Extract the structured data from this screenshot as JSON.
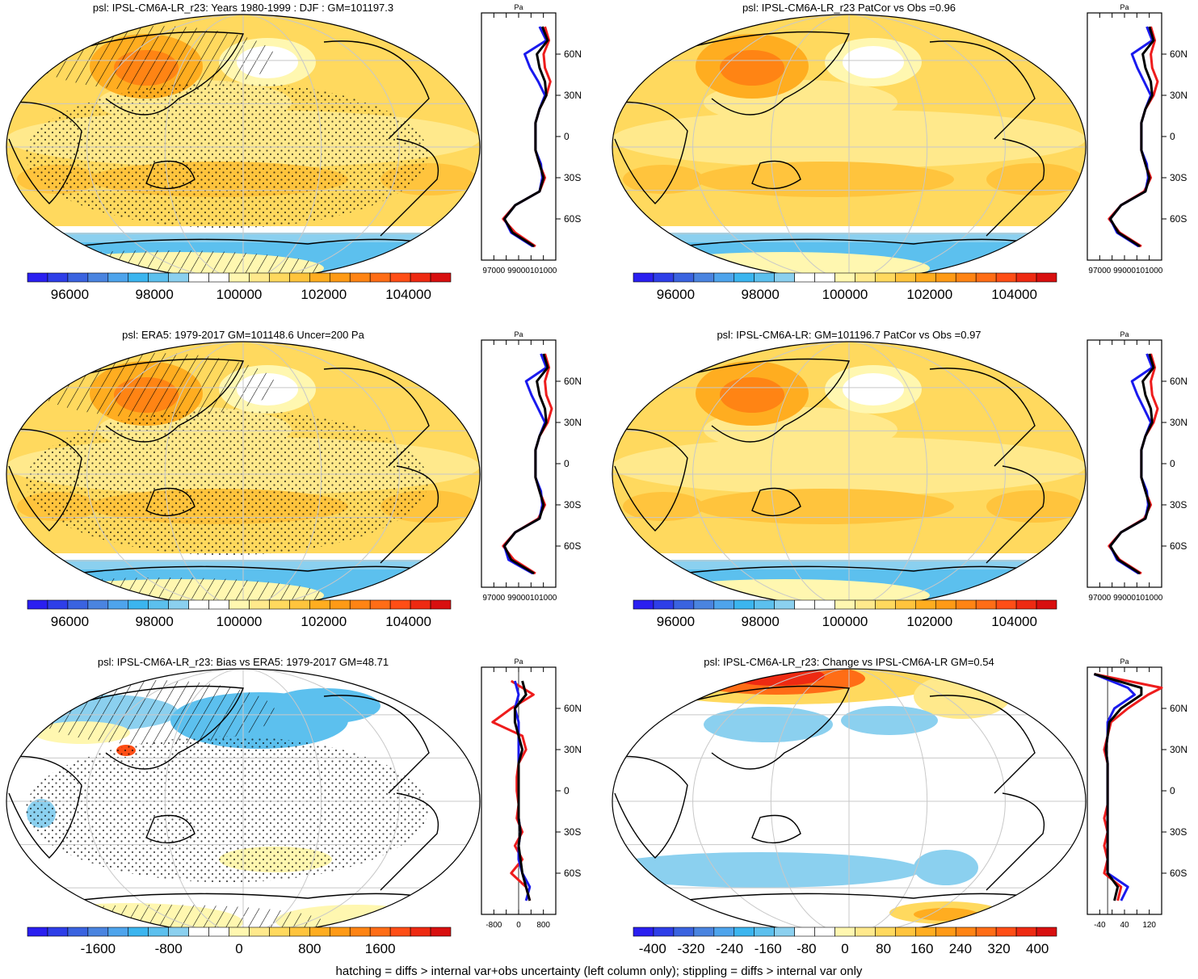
{
  "footer_note": "hatching = diffs > internal var+obs uncertainty (left column only); stippling = diffs > internal var only",
  "colors": {
    "cbar_abs": [
      "#2a1ff0",
      "#2e3ee8",
      "#3a63e0",
      "#4a84e0",
      "#4ea4ec",
      "#3bb5ef",
      "#5cc0ee",
      "#8bd0ef",
      "#ffffff",
      "#ffffff",
      "#fff7b0",
      "#ffe98c",
      "#ffd95e",
      "#ffc43d",
      "#ffad20",
      "#ff9a16",
      "#ff8414",
      "#ff6d16",
      "#ff4e16",
      "#ee2a12",
      "#d80f0f"
    ],
    "cbar_diff": [
      "#2a1ff0",
      "#2e3ee8",
      "#3a63e0",
      "#4a84e0",
      "#4ea4ec",
      "#3bb5ef",
      "#5cc0ee",
      "#8bd0ef",
      "#ffffff",
      "#ffffff",
      "#fff7b0",
      "#ffe98c",
      "#ffd95e",
      "#ffc43d",
      "#ffad20",
      "#ff9a16",
      "#ff8414",
      "#ff6d16",
      "#ff4e16",
      "#ee2a12",
      "#d80f0f"
    ],
    "model_line": "#ee1c1c",
    "obs_line": "#1a1aee",
    "ens_line": "#000000"
  },
  "lat_ticks": [
    "60N",
    "30N",
    "0",
    "30S",
    "60S"
  ],
  "panels": [
    {
      "title": "psl: IPSL-CM6A-LR_r23: Years 1980-1999 : DJF : GM=101197.3",
      "colorbar_ticks": [
        "96000",
        "98000",
        "100000",
        "102000",
        "104000"
      ],
      "profile_xticks": [
        "97000",
        "99000",
        "101000"
      ],
      "profile_unit": "Pa"
    },
    {
      "title": "psl: IPSL-CM6A-LR_r23 PatCor vs Obs =0.96",
      "colorbar_ticks": [
        "96000",
        "98000",
        "100000",
        "102000",
        "104000"
      ],
      "profile_xticks": [
        "97000",
        "99000",
        "101000"
      ],
      "profile_unit": "Pa"
    },
    {
      "title": "psl: ERA5: 1979-2017 GM=101148.6 Uncer=200 Pa",
      "colorbar_ticks": [
        "96000",
        "98000",
        "100000",
        "102000",
        "104000"
      ],
      "profile_xticks": [
        "97000",
        "99000",
        "101000"
      ],
      "profile_unit": "Pa"
    },
    {
      "title": "psl: IPSL-CM6A-LR: GM=101196.7 PatCor vs Obs =0.97",
      "colorbar_ticks": [
        "96000",
        "98000",
        "100000",
        "102000",
        "104000"
      ],
      "profile_xticks": [
        "97000",
        "99000",
        "101000"
      ],
      "profile_unit": "Pa"
    },
    {
      "title": "psl: IPSL-CM6A-LR_r23: Bias vs ERA5: 1979-2017 GM=48.71",
      "colorbar_ticks": [
        "-1600",
        "-800",
        "0",
        "800",
        "1600"
      ],
      "profile_xticks": [
        "-800",
        "0",
        "800"
      ],
      "profile_unit": "Pa"
    },
    {
      "title": "psl: IPSL-CM6A-LR_r23: Change vs IPSL-CM6A-LR GM=0.54",
      "colorbar_ticks": [
        "-400",
        "-320",
        "-240",
        "-160",
        "-80",
        "0",
        "80",
        "160",
        "240",
        "320",
        "400"
      ],
      "profile_xticks": [
        "-40",
        "40",
        "120"
      ],
      "profile_unit": "Pa"
    }
  ],
  "chart_data": [
    {
      "type": "heatmap",
      "title": "psl: IPSL-CM6A-LR_r23: Years 1980-1999 : DJF : GM=101197.3",
      "variable": "psl",
      "season": "DJF",
      "global_mean": 101197.3,
      "colorbar": {
        "min": 95000,
        "max": 105000,
        "ticks": [
          96000,
          98000,
          100000,
          102000,
          104000
        ]
      },
      "zonal_profile": {
        "lat": [
          80,
          70,
          60,
          50,
          40,
          30,
          20,
          10,
          0,
          -10,
          -20,
          -30,
          -40,
          -50,
          -60,
          -70,
          -80
        ],
        "series": [
          {
            "name": "model",
            "values": [
              101700,
              102000,
              101600,
              101700,
              102100,
              101800,
              101300,
              101000,
              101000,
              101000,
              101300,
              101700,
              101300,
              99500,
              98600,
              99500,
              101000
            ]
          },
          {
            "name": "obs",
            "values": [
              101300,
              101800,
              100200,
              100600,
              101200,
              101700,
              101300,
              101000,
              101000,
              101000,
              101400,
              101500,
              101300,
              99500,
              98700,
              99200,
              100800
            ]
          },
          {
            "name": "ensemble",
            "values": [
              101500,
              101900,
              101100,
              101300,
              101700,
              101800,
              101300,
              101000,
              101000,
              101000,
              101300,
              101600,
              101300,
              99500,
              98700,
              99300,
              100900
            ]
          }
        ],
        "xlim": [
          97000,
          102500
        ]
      }
    },
    {
      "type": "heatmap",
      "title": "psl: IPSL-CM6A-LR_r23 PatCor vs Obs =0.96",
      "variable": "psl",
      "pattern_correlation": 0.96,
      "colorbar": {
        "min": 95000,
        "max": 105000,
        "ticks": [
          96000,
          98000,
          100000,
          102000,
          104000
        ]
      },
      "zonal_profile": {
        "lat": [
          80,
          70,
          60,
          50,
          40,
          30,
          20,
          10,
          0,
          -10,
          -20,
          -30,
          -40,
          -50,
          -60,
          -70,
          -80
        ],
        "series": [
          {
            "name": "model",
            "values": [
              101700,
              102000,
              101700,
              101800,
              102200,
              101900,
              101300,
              101000,
              101000,
              101000,
              101300,
              101700,
              101200,
              99500,
              98600,
              99400,
              101000
            ]
          },
          {
            "name": "obs",
            "values": [
              101400,
              101800,
              100300,
              100700,
              101200,
              101700,
              101300,
              101000,
              101000,
              101000,
              101400,
              101500,
              101300,
              99500,
              98700,
              99200,
              100800
            ]
          },
          {
            "name": "ensemble",
            "values": [
              101600,
              101900,
              101100,
              101300,
              101700,
              101800,
              101300,
              101000,
              101000,
              101000,
              101300,
              101600,
              101300,
              99500,
              98700,
              99300,
              100900
            ]
          }
        ],
        "xlim": [
          97000,
          102500
        ]
      }
    },
    {
      "type": "heatmap",
      "title": "psl: ERA5: 1979-2017 GM=101148.6 Uncer=200 Pa",
      "variable": "psl",
      "global_mean": 101148.6,
      "uncertainty_pa": 200,
      "colorbar": {
        "min": 95000,
        "max": 105000,
        "ticks": [
          96000,
          98000,
          100000,
          102000,
          104000
        ]
      },
      "zonal_profile": {
        "lat": [
          80,
          70,
          60,
          50,
          40,
          30,
          20,
          10,
          0,
          -10,
          -20,
          -30,
          -40,
          -50,
          -60,
          -70,
          -80
        ],
        "series": [
          {
            "name": "model",
            "values": [
              101700,
              102000,
              101700,
              101800,
              102200,
              101900,
              101300,
              101000,
              101000,
              101000,
              101300,
              101700,
              101200,
              99500,
              98600,
              99400,
              101000
            ]
          },
          {
            "name": "obs",
            "values": [
              101400,
              101800,
              100300,
              100700,
              101200,
              101700,
              101300,
              101000,
              101000,
              101000,
              101400,
              101500,
              101300,
              99500,
              98700,
              99000,
              100800
            ]
          },
          {
            "name": "ensemble",
            "values": [
              101600,
              101900,
              101100,
              101300,
              101700,
              101800,
              101300,
              101000,
              101000,
              101000,
              101300,
              101600,
              101300,
              99500,
              98700,
              99200,
              100900
            ]
          }
        ],
        "xlim": [
          97000,
          102500
        ]
      }
    },
    {
      "type": "heatmap",
      "title": "psl: IPSL-CM6A-LR: GM=101196.7 PatCor vs Obs =0.97",
      "variable": "psl",
      "global_mean": 101196.7,
      "pattern_correlation": 0.97,
      "colorbar": {
        "min": 95000,
        "max": 105000,
        "ticks": [
          96000,
          98000,
          100000,
          102000,
          104000
        ]
      },
      "zonal_profile": {
        "lat": [
          80,
          70,
          60,
          50,
          40,
          30,
          20,
          10,
          0,
          -10,
          -20,
          -30,
          -40,
          -50,
          -60,
          -70,
          -80
        ],
        "series": [
          {
            "name": "model",
            "values": [
              101700,
              102000,
              101700,
              101800,
              102200,
              101900,
              101300,
              101000,
              101000,
              101000,
              101300,
              101700,
              101200,
              99500,
              98600,
              99400,
              101000
            ]
          },
          {
            "name": "obs",
            "values": [
              101400,
              101800,
              100300,
              100700,
              101200,
              101700,
              101300,
              101000,
              101000,
              101000,
              101400,
              101500,
              101300,
              99500,
              98700,
              99200,
              100800
            ]
          },
          {
            "name": "ensemble",
            "values": [
              101600,
              101900,
              101100,
              101300,
              101700,
              101800,
              101300,
              101000,
              101000,
              101000,
              101300,
              101600,
              101300,
              99500,
              98700,
              99300,
              100900
            ]
          }
        ],
        "xlim": [
          97000,
          102500
        ]
      }
    },
    {
      "type": "heatmap",
      "title": "psl: IPSL-CM6A-LR_r23: Bias vs ERA5: 1979-2017 GM=48.71",
      "variable": "psl",
      "global_mean": 48.71,
      "colorbar": {
        "min": -2400,
        "max": 2400,
        "ticks": [
          -1600,
          -800,
          0,
          800,
          1600
        ]
      },
      "zonal_profile": {
        "lat": [
          80,
          70,
          60,
          50,
          40,
          30,
          20,
          10,
          0,
          -10,
          -20,
          -30,
          -40,
          -50,
          -60,
          -70,
          -80
        ],
        "series": [
          {
            "name": "model",
            "values": [
              -200,
              400,
              -200,
              -700,
              100,
              200,
              0,
              -50,
              -50,
              0,
              -50,
              100,
              -100,
              100,
              -200,
              200,
              300
            ]
          },
          {
            "name": "obs",
            "values": [
              -100,
              0,
              -100,
              0,
              0,
              0,
              0,
              0,
              0,
              0,
              0,
              50,
              0,
              0,
              100,
              300,
              200
            ]
          },
          {
            "name": "ensemble",
            "values": [
              100,
              200,
              -100,
              -100,
              0,
              100,
              0,
              0,
              0,
              0,
              0,
              50,
              0,
              50,
              100,
              200,
              300
            ]
          }
        ],
        "xlim": [
          -1000,
          1000
        ]
      }
    },
    {
      "type": "heatmap",
      "title": "psl: IPSL-CM6A-LR_r23: Change vs IPSL-CM6A-LR GM=0.54",
      "variable": "psl",
      "global_mean": 0.54,
      "colorbar": {
        "min": -440,
        "max": 440,
        "ticks": [
          -400,
          -320,
          -240,
          -160,
          -80,
          0,
          80,
          160,
          240,
          320,
          400
        ]
      },
      "zonal_profile": {
        "lat": [
          85,
          75,
          70,
          60,
          50,
          40,
          30,
          20,
          10,
          0,
          -10,
          -20,
          -30,
          -40,
          -50,
          -60,
          -70,
          -80
        ],
        "series": [
          {
            "name": "model",
            "values": [
              -40,
              160,
              120,
              60,
              10,
              0,
              -10,
              0,
              0,
              0,
              0,
              -10,
              0,
              -10,
              0,
              -10,
              40,
              30
            ]
          },
          {
            "name": "obs",
            "values": [
              -40,
              60,
              80,
              20,
              0,
              0,
              -5,
              0,
              0,
              0,
              0,
              0,
              0,
              0,
              0,
              0,
              60,
              40
            ]
          },
          {
            "name": "ensemble",
            "values": [
              -40,
              100,
              100,
              40,
              5,
              0,
              -5,
              0,
              0,
              0,
              0,
              0,
              0,
              0,
              0,
              0,
              30,
              20
            ]
          }
        ],
        "xlim": [
          -60,
          160
        ]
      }
    }
  ]
}
